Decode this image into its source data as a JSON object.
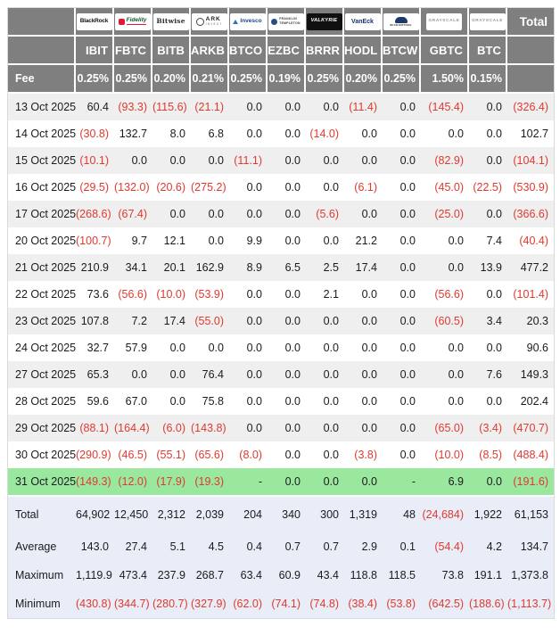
{
  "colors": {
    "header_bg": "#7f7f7f",
    "header_text": "#ffffff",
    "text": "#1b1b1d",
    "negative_red": "#e0392f",
    "stripe_bg": "#efefef",
    "row_bg": "#ffffff",
    "highlight_green": "#9ae79e",
    "summary_bg": "#e9edf7",
    "fidelity_red": "#e31837",
    "invesco_blue": "#2f73bf",
    "vaneck_blue": "#16356e",
    "wisdomtree_blue": "#1c3a6a",
    "grayscale_gray": "#97979d",
    "valkyrie_black": "#101010"
  },
  "chart_data": {
    "type": "table",
    "total_label": "Total",
    "fee_label": "Fee",
    "providers": [
      {
        "name": "BlackRock",
        "logo_style": "blackrock",
        "logo_text": "BlackRock",
        "ticker": "IBIT",
        "fee": "0.25%"
      },
      {
        "name": "Fidelity",
        "logo_style": "fidelity",
        "logo_text": "Fidelity",
        "ticker": "FBTC",
        "fee": "0.25%"
      },
      {
        "name": "Bitwise",
        "logo_style": "bitwise",
        "logo_text": "Bitwise",
        "ticker": "BITB",
        "fee": "0.20%"
      },
      {
        "name": "ARK Invest",
        "logo_style": "ark",
        "logo_text": "ARK",
        "logo_sub": "INVEST",
        "ticker": "ARKB",
        "fee": "0.21%"
      },
      {
        "name": "Invesco",
        "logo_style": "invesco",
        "logo_text": "Invesco",
        "ticker": "BTCO",
        "fee": "0.25%"
      },
      {
        "name": "Franklin Templeton",
        "logo_style": "franklin",
        "logo_text": "FRANKLIN",
        "logo_sub": "TEMPLETON",
        "ticker": "EZBC",
        "fee": "0.19%"
      },
      {
        "name": "Valkyrie",
        "logo_style": "valkyrie",
        "logo_text": "VALKYRIE",
        "ticker": "BRRR",
        "fee": "0.25%"
      },
      {
        "name": "VanEck",
        "logo_style": "vaneck",
        "logo_text": "VanEck",
        "ticker": "HODL",
        "fee": "0.20%"
      },
      {
        "name": "WisdomTree",
        "logo_style": "wisdomtree",
        "logo_text": "WISDOMTREE",
        "ticker": "BTCW",
        "fee": "0.25%"
      },
      {
        "name": "Grayscale",
        "logo_style": "grayscale",
        "logo_text": "GRAYSCALE",
        "ticker": "GBTC",
        "fee": "1.50%"
      },
      {
        "name": "Grayscale",
        "logo_style": "grayscale",
        "logo_text": "GRAYSCALE",
        "ticker": "BTC",
        "fee": "0.15%"
      }
    ],
    "rows": [
      {
        "date": "13 Oct 2025",
        "values": [
          "60.4",
          "(93.3)",
          "(115.6)",
          "(21.1)",
          "0.0",
          "0.0",
          "0.0",
          "(11.4)",
          "0.0",
          "(145.4)",
          "0.0"
        ],
        "total": "(326.4)",
        "highlight": false
      },
      {
        "date": "14 Oct 2025",
        "values": [
          "(30.8)",
          "132.7",
          "8.0",
          "6.8",
          "0.0",
          "0.0",
          "(14.0)",
          "0.0",
          "0.0",
          "0.0",
          "0.0"
        ],
        "total": "102.7",
        "highlight": false
      },
      {
        "date": "15 Oct 2025",
        "values": [
          "(10.1)",
          "0.0",
          "0.0",
          "0.0",
          "(11.1)",
          "0.0",
          "0.0",
          "0.0",
          "0.0",
          "(82.9)",
          "0.0"
        ],
        "total": "(104.1)",
        "highlight": false
      },
      {
        "date": "16 Oct 2025",
        "values": [
          "(29.5)",
          "(132.0)",
          "(20.6)",
          "(275.2)",
          "0.0",
          "0.0",
          "0.0",
          "(6.1)",
          "0.0",
          "(45.0)",
          "(22.5)"
        ],
        "total": "(530.9)",
        "highlight": false
      },
      {
        "date": "17 Oct 2025",
        "values": [
          "(268.6)",
          "(67.4)",
          "0.0",
          "0.0",
          "0.0",
          "0.0",
          "(5.6)",
          "0.0",
          "0.0",
          "(25.0)",
          "0.0"
        ],
        "total": "(366.6)",
        "highlight": false
      },
      {
        "date": "20 Oct 2025",
        "values": [
          "(100.7)",
          "9.7",
          "12.1",
          "0.0",
          "9.9",
          "0.0",
          "0.0",
          "21.2",
          "0.0",
          "0.0",
          "7.4"
        ],
        "total": "(40.4)",
        "highlight": false
      },
      {
        "date": "21 Oct 2025",
        "values": [
          "210.9",
          "34.1",
          "20.1",
          "162.9",
          "8.9",
          "6.5",
          "2.5",
          "17.4",
          "0.0",
          "0.0",
          "13.9"
        ],
        "total": "477.2",
        "highlight": false
      },
      {
        "date": "22 Oct 2025",
        "values": [
          "73.6",
          "(56.6)",
          "(10.0)",
          "(53.9)",
          "0.0",
          "0.0",
          "2.1",
          "0.0",
          "0.0",
          "(56.6)",
          "0.0"
        ],
        "total": "(101.4)",
        "highlight": false
      },
      {
        "date": "23 Oct 2025",
        "values": [
          "107.8",
          "7.2",
          "17.4",
          "(55.0)",
          "0.0",
          "0.0",
          "0.0",
          "0.0",
          "0.0",
          "(60.5)",
          "3.4"
        ],
        "total": "20.3",
        "highlight": false
      },
      {
        "date": "24 Oct 2025",
        "values": [
          "32.7",
          "57.9",
          "0.0",
          "0.0",
          "0.0",
          "0.0",
          "0.0",
          "0.0",
          "0.0",
          "0.0",
          "0.0"
        ],
        "total": "90.6",
        "highlight": false
      },
      {
        "date": "27 Oct 2025",
        "values": [
          "65.3",
          "0.0",
          "0.0",
          "76.4",
          "0.0",
          "0.0",
          "0.0",
          "0.0",
          "0.0",
          "0.0",
          "7.6"
        ],
        "total": "149.3",
        "highlight": false
      },
      {
        "date": "28 Oct 2025",
        "values": [
          "59.6",
          "67.0",
          "0.0",
          "75.8",
          "0.0",
          "0.0",
          "0.0",
          "0.0",
          "0.0",
          "0.0",
          "0.0"
        ],
        "total": "202.4",
        "highlight": false
      },
      {
        "date": "29 Oct 2025",
        "values": [
          "(88.1)",
          "(164.4)",
          "(6.0)",
          "(143.8)",
          "0.0",
          "0.0",
          "0.0",
          "0.0",
          "0.0",
          "(65.0)",
          "(3.4)"
        ],
        "total": "(470.7)",
        "highlight": false
      },
      {
        "date": "30 Oct 2025",
        "values": [
          "(290.9)",
          "(46.5)",
          "(55.1)",
          "(65.6)",
          "(8.0)",
          "0.0",
          "0.0",
          "(3.8)",
          "0.0",
          "(10.0)",
          "(8.5)"
        ],
        "total": "(488.4)",
        "highlight": false
      },
      {
        "date": "31 Oct 2025",
        "values": [
          "(149.3)",
          "(12.0)",
          "(17.9)",
          "(19.3)",
          "-",
          "0.0",
          "0.0",
          "0.0",
          "-",
          "6.9",
          "0.0"
        ],
        "total": "(191.6)",
        "highlight": true
      }
    ],
    "summary": [
      {
        "label": "Total",
        "values": [
          "64,902",
          "12,450",
          "2,312",
          "2,039",
          "204",
          "340",
          "300",
          "1,319",
          "48",
          "(24,684)",
          "1,922"
        ],
        "total": "61,153"
      },
      {
        "label": "Average",
        "values": [
          "143.0",
          "27.4",
          "5.1",
          "4.5",
          "0.4",
          "0.7",
          "0.7",
          "2.9",
          "0.1",
          "(54.4)",
          "4.2"
        ],
        "total": "134.7"
      },
      {
        "label": "Maximum",
        "values": [
          "1,119.9",
          "473.4",
          "237.9",
          "268.7",
          "63.4",
          "60.9",
          "43.4",
          "118.8",
          "118.5",
          "73.8",
          "191.1"
        ],
        "total": "1,373.8"
      },
      {
        "label": "Minimum",
        "values": [
          "(430.8)",
          "(344.7)",
          "(280.7)",
          "(327.9)",
          "(62.0)",
          "(74.1)",
          "(74.8)",
          "(38.4)",
          "(53.8)",
          "(642.5)",
          "(188.6)"
        ],
        "total": "(1,113.7)"
      }
    ]
  }
}
